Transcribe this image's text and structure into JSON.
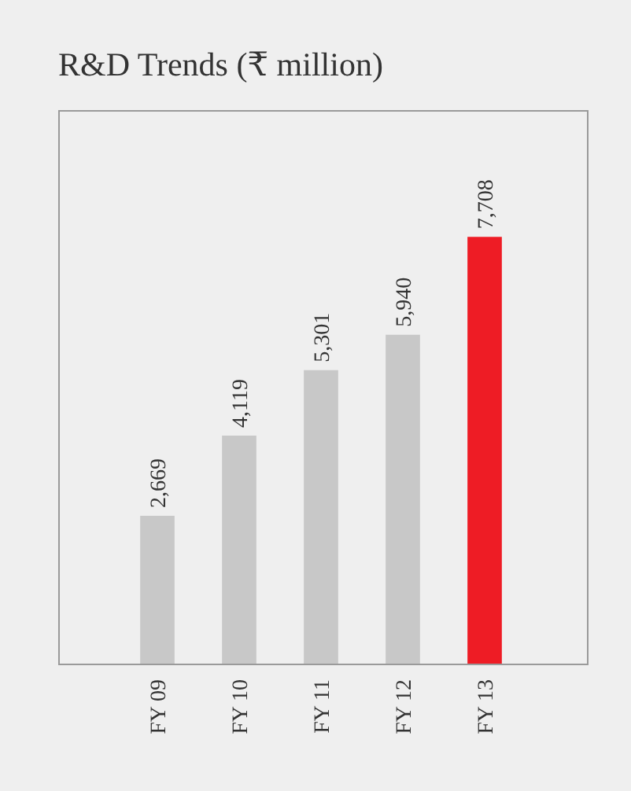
{
  "chart_data": {
    "type": "bar",
    "title": "R&D Trends (₹ million)",
    "categories": [
      "FY 09",
      "FY 10",
      "FY 11",
      "FY 12",
      "FY 13"
    ],
    "values": [
      2669,
      4119,
      5301,
      5940,
      7708
    ],
    "value_labels": [
      "2,669",
      "4,119",
      "5,301",
      "5,940",
      "7,708"
    ],
    "colors": [
      "#c8c8c8",
      "#c8c8c8",
      "#c8c8c8",
      "#c8c8c8",
      "#ee1c25"
    ],
    "ylim": [
      0,
      10000
    ],
    "tick_labels": "x"
  }
}
